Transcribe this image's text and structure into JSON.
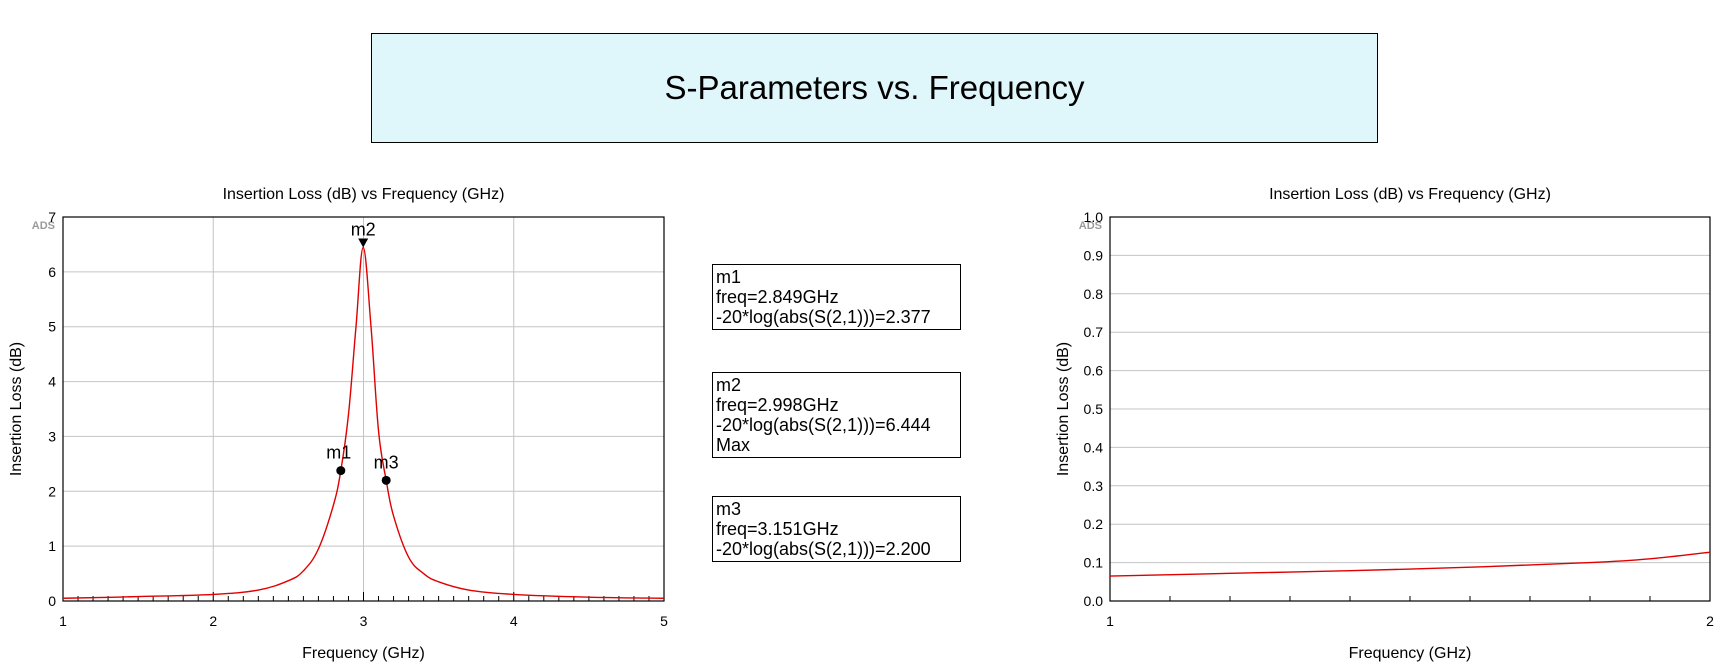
{
  "page_title": "S-Parameters vs. Frequency",
  "chart_data": [
    {
      "type": "line",
      "title": "Insertion Loss (dB) vs Frequency (GHz)",
      "xlabel": "Frequency (GHz)",
      "ylabel": "Insertion Loss (dB)",
      "watermark": "ADS",
      "xlim": [
        1,
        5
      ],
      "ylim": [
        0,
        7
      ],
      "x_ticks": [
        1,
        2,
        3,
        4,
        5
      ],
      "y_ticks": [
        0,
        1,
        2,
        3,
        4,
        5,
        6,
        7
      ],
      "grid": true,
      "line_color": "#e00000",
      "series": [
        {
          "x": [
            1.0,
            1.5,
            2.0,
            2.3,
            2.5,
            2.6,
            2.7,
            2.8,
            2.849,
            2.9,
            2.95,
            2.998,
            3.05,
            3.1,
            3.151,
            3.2,
            3.3,
            3.4,
            3.5,
            3.7,
            4.0,
            4.5,
            5.0
          ],
          "y": [
            0.05,
            0.08,
            0.12,
            0.2,
            0.37,
            0.55,
            0.95,
            1.75,
            2.377,
            3.4,
            5.0,
            6.444,
            5.0,
            3.1,
            2.2,
            1.55,
            0.8,
            0.5,
            0.35,
            0.2,
            0.12,
            0.07,
            0.05
          ]
        }
      ],
      "markers": [
        {
          "name": "m1",
          "x": 2.849,
          "y": 2.377,
          "symbol": "dot"
        },
        {
          "name": "m2",
          "x": 2.998,
          "y": 6.444,
          "symbol": "triangle"
        },
        {
          "name": "m3",
          "x": 3.151,
          "y": 2.2,
          "symbol": "dot"
        }
      ]
    },
    {
      "type": "line",
      "title": "Insertion Loss (dB) vs Frequency (GHz)",
      "xlabel": "Frequency (GHz)",
      "ylabel": "Insertion Loss (dB)",
      "watermark": "ADS",
      "xlim": [
        1,
        2
      ],
      "ylim": [
        0,
        1
      ],
      "x_ticks": [
        1,
        2
      ],
      "y_ticks": [
        "0.0",
        "0.1",
        "0.2",
        "0.3",
        "0.4",
        "0.5",
        "0.6",
        "0.7",
        "0.8",
        "0.9",
        "1.0"
      ],
      "grid": true,
      "line_color": "#e00000",
      "series": [
        {
          "x": [
            1.0,
            1.2,
            1.4,
            1.6,
            1.8,
            1.9,
            2.0
          ],
          "y": [
            0.065,
            0.072,
            0.079,
            0.088,
            0.1,
            0.11,
            0.127
          ]
        }
      ]
    }
  ],
  "marker_labels": [
    {
      "name": "m1",
      "lines": [
        "m1",
        "freq=2.849GHz",
        "-20*log(abs(S(2,1)))=2.377"
      ]
    },
    {
      "name": "m2",
      "lines": [
        "m2",
        "freq=2.998GHz",
        "-20*log(abs(S(2,1)))=6.444",
        "Max"
      ]
    },
    {
      "name": "m3",
      "lines": [
        "m3",
        "freq=3.151GHz",
        "-20*log(abs(S(2,1)))=2.200"
      ]
    }
  ]
}
